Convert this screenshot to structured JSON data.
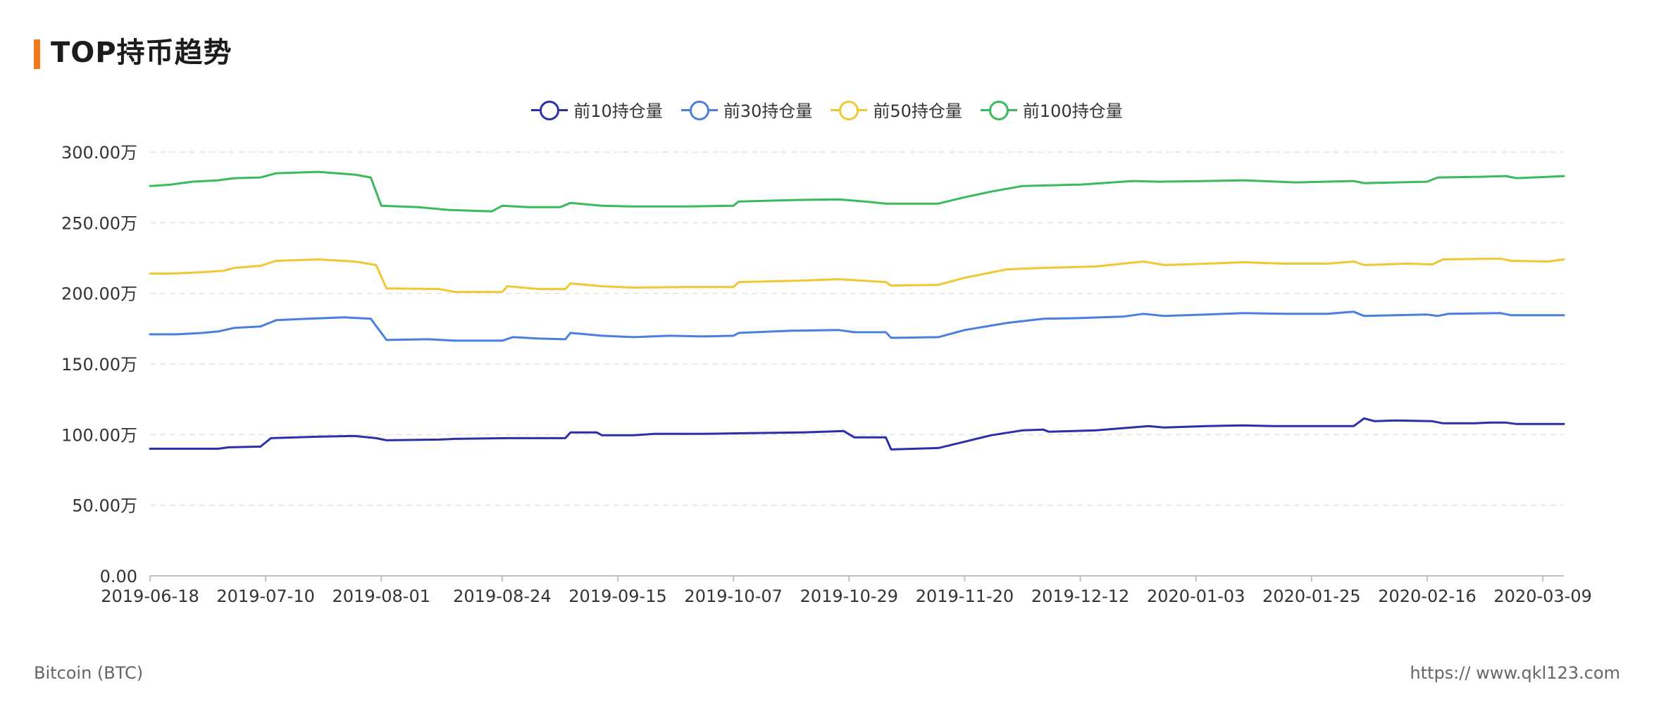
{
  "header": {
    "title": "TOP持币趋势"
  },
  "footer": {
    "left": "Bitcoin (BTC)",
    "right": "https:// www.qkl123.com"
  },
  "chart_data": {
    "type": "line",
    "title": "TOP持币趋势",
    "xlabel": "",
    "ylabel": "",
    "ylim": [
      0,
      3000000
    ],
    "y_ticks": [
      0,
      500000,
      1000000,
      1500000,
      2000000,
      2500000,
      3000000
    ],
    "y_tick_labels": [
      "0.00",
      "50.00万",
      "100.00万",
      "150.00万",
      "200.00万",
      "250.00万",
      "300.00万"
    ],
    "x_tick_labels": [
      "2019-06-18",
      "2019-07-10",
      "2019-08-01",
      "2019-08-24",
      "2019-09-15",
      "2019-10-07",
      "2019-10-29",
      "2019-11-20",
      "2019-12-12",
      "2020-01-03",
      "2020-01-25",
      "2020-02-16",
      "2020-03-09"
    ],
    "x_range": [
      "2019-06-18",
      "2020-03-13"
    ],
    "grid": true,
    "legend_position": "top-center",
    "series": [
      {
        "name": "前10持仓量",
        "color": "#2b2fa8",
        "points": [
          [
            "2019-06-18",
            900000
          ],
          [
            "2019-07-01",
            900000
          ],
          [
            "2019-07-03",
            910000
          ],
          [
            "2019-07-09",
            915000
          ],
          [
            "2019-07-11",
            975000
          ],
          [
            "2019-07-20",
            985000
          ],
          [
            "2019-07-27",
            990000
          ],
          [
            "2019-07-31",
            975000
          ],
          [
            "2019-08-02",
            960000
          ],
          [
            "2019-08-12",
            965000
          ],
          [
            "2019-08-15",
            970000
          ],
          [
            "2019-08-25",
            975000
          ],
          [
            "2019-09-05",
            975000
          ],
          [
            "2019-09-06",
            1015000
          ],
          [
            "2019-09-11",
            1015000
          ],
          [
            "2019-09-12",
            995000
          ],
          [
            "2019-09-18",
            995000
          ],
          [
            "2019-09-22",
            1005000
          ],
          [
            "2019-10-01",
            1005000
          ],
          [
            "2019-10-10",
            1010000
          ],
          [
            "2019-10-20",
            1015000
          ],
          [
            "2019-10-28",
            1025000
          ],
          [
            "2019-10-30",
            980000
          ],
          [
            "2019-11-05",
            980000
          ],
          [
            "2019-11-06",
            895000
          ],
          [
            "2019-11-15",
            905000
          ],
          [
            "2019-11-20",
            950000
          ],
          [
            "2019-11-25",
            995000
          ],
          [
            "2019-12-01",
            1030000
          ],
          [
            "2019-12-05",
            1035000
          ],
          [
            "2019-12-06",
            1020000
          ],
          [
            "2019-12-15",
            1030000
          ],
          [
            "2019-12-20",
            1045000
          ],
          [
            "2019-12-25",
            1060000
          ],
          [
            "2019-12-28",
            1050000
          ],
          [
            "2020-01-05",
            1060000
          ],
          [
            "2020-01-12",
            1065000
          ],
          [
            "2020-01-18",
            1060000
          ],
          [
            "2020-02-02",
            1060000
          ],
          [
            "2020-02-04",
            1115000
          ],
          [
            "2020-02-06",
            1095000
          ],
          [
            "2020-02-10",
            1100000
          ],
          [
            "2020-02-17",
            1095000
          ],
          [
            "2020-02-19",
            1080000
          ],
          [
            "2020-02-25",
            1080000
          ],
          [
            "2020-02-28",
            1085000
          ],
          [
            "2020-03-02",
            1085000
          ],
          [
            "2020-03-04",
            1075000
          ],
          [
            "2020-03-13",
            1075000
          ]
        ]
      },
      {
        "name": "前30持仓量",
        "color": "#4a7fe0",
        "points": [
          [
            "2019-06-18",
            1710000
          ],
          [
            "2019-06-23",
            1710000
          ],
          [
            "2019-06-28",
            1720000
          ],
          [
            "2019-07-01",
            1730000
          ],
          [
            "2019-07-04",
            1755000
          ],
          [
            "2019-07-09",
            1765000
          ],
          [
            "2019-07-12",
            1810000
          ],
          [
            "2019-07-18",
            1820000
          ],
          [
            "2019-07-25",
            1830000
          ],
          [
            "2019-07-30",
            1820000
          ],
          [
            "2019-08-02",
            1670000
          ],
          [
            "2019-08-10",
            1675000
          ],
          [
            "2019-08-15",
            1665000
          ],
          [
            "2019-08-24",
            1665000
          ],
          [
            "2019-08-26",
            1690000
          ],
          [
            "2019-08-31",
            1680000
          ],
          [
            "2019-09-05",
            1675000
          ],
          [
            "2019-09-06",
            1720000
          ],
          [
            "2019-09-12",
            1700000
          ],
          [
            "2019-09-18",
            1690000
          ],
          [
            "2019-09-25",
            1700000
          ],
          [
            "2019-10-01",
            1695000
          ],
          [
            "2019-10-07",
            1700000
          ],
          [
            "2019-10-08",
            1720000
          ],
          [
            "2019-10-18",
            1735000
          ],
          [
            "2019-10-27",
            1740000
          ],
          [
            "2019-10-30",
            1725000
          ],
          [
            "2019-11-05",
            1725000
          ],
          [
            "2019-11-06",
            1685000
          ],
          [
            "2019-11-15",
            1690000
          ],
          [
            "2019-11-20",
            1740000
          ],
          [
            "2019-11-28",
            1790000
          ],
          [
            "2019-12-05",
            1820000
          ],
          [
            "2019-12-12",
            1825000
          ],
          [
            "2019-12-20",
            1835000
          ],
          [
            "2019-12-24",
            1855000
          ],
          [
            "2019-12-28",
            1840000
          ],
          [
            "2020-01-05",
            1850000
          ],
          [
            "2020-01-12",
            1860000
          ],
          [
            "2020-01-20",
            1855000
          ],
          [
            "2020-01-28",
            1855000
          ],
          [
            "2020-02-02",
            1870000
          ],
          [
            "2020-02-04",
            1840000
          ],
          [
            "2020-02-16",
            1850000
          ],
          [
            "2020-02-18",
            1840000
          ],
          [
            "2020-02-20",
            1855000
          ],
          [
            "2020-03-01",
            1860000
          ],
          [
            "2020-03-03",
            1845000
          ],
          [
            "2020-03-13",
            1845000
          ]
        ]
      },
      {
        "name": "前50持仓量",
        "color": "#f1c734",
        "points": [
          [
            "2019-06-18",
            2140000
          ],
          [
            "2019-06-22",
            2140000
          ],
          [
            "2019-06-28",
            2150000
          ],
          [
            "2019-07-02",
            2160000
          ],
          [
            "2019-07-04",
            2180000
          ],
          [
            "2019-07-09",
            2195000
          ],
          [
            "2019-07-12",
            2230000
          ],
          [
            "2019-07-20",
            2240000
          ],
          [
            "2019-07-27",
            2225000
          ],
          [
            "2019-07-31",
            2200000
          ],
          [
            "2019-08-02",
            2035000
          ],
          [
            "2019-08-12",
            2030000
          ],
          [
            "2019-08-15",
            2010000
          ],
          [
            "2019-08-24",
            2010000
          ],
          [
            "2019-08-25",
            2050000
          ],
          [
            "2019-08-31",
            2030000
          ],
          [
            "2019-09-05",
            2030000
          ],
          [
            "2019-09-06",
            2070000
          ],
          [
            "2019-09-12",
            2050000
          ],
          [
            "2019-09-18",
            2040000
          ],
          [
            "2019-09-28",
            2045000
          ],
          [
            "2019-10-07",
            2045000
          ],
          [
            "2019-10-08",
            2080000
          ],
          [
            "2019-10-20",
            2090000
          ],
          [
            "2019-10-27",
            2100000
          ],
          [
            "2019-11-05",
            2080000
          ],
          [
            "2019-11-06",
            2055000
          ],
          [
            "2019-11-15",
            2060000
          ],
          [
            "2019-11-20",
            2110000
          ],
          [
            "2019-11-28",
            2170000
          ],
          [
            "2019-12-05",
            2180000
          ],
          [
            "2019-12-15",
            2190000
          ],
          [
            "2019-12-24",
            2225000
          ],
          [
            "2019-12-28",
            2200000
          ],
          [
            "2020-01-05",
            2210000
          ],
          [
            "2020-01-12",
            2220000
          ],
          [
            "2020-01-20",
            2210000
          ],
          [
            "2020-01-28",
            2210000
          ],
          [
            "2020-02-02",
            2225000
          ],
          [
            "2020-02-04",
            2200000
          ],
          [
            "2020-02-12",
            2210000
          ],
          [
            "2020-02-17",
            2205000
          ],
          [
            "2020-02-19",
            2240000
          ],
          [
            "2020-02-28",
            2245000
          ],
          [
            "2020-03-01",
            2245000
          ],
          [
            "2020-03-03",
            2230000
          ],
          [
            "2020-03-10",
            2225000
          ],
          [
            "2020-03-13",
            2240000
          ]
        ]
      },
      {
        "name": "前100持仓量",
        "color": "#3cba5a",
        "points": [
          [
            "2019-06-18",
            2760000
          ],
          [
            "2019-06-22",
            2770000
          ],
          [
            "2019-06-26",
            2790000
          ],
          [
            "2019-07-01",
            2800000
          ],
          [
            "2019-07-04",
            2815000
          ],
          [
            "2019-07-09",
            2820000
          ],
          [
            "2019-07-12",
            2850000
          ],
          [
            "2019-07-20",
            2860000
          ],
          [
            "2019-07-27",
            2840000
          ],
          [
            "2019-07-30",
            2820000
          ],
          [
            "2019-08-01",
            2620000
          ],
          [
            "2019-08-08",
            2610000
          ],
          [
            "2019-08-14",
            2590000
          ],
          [
            "2019-08-22",
            2580000
          ],
          [
            "2019-08-24",
            2620000
          ],
          [
            "2019-08-29",
            2610000
          ],
          [
            "2019-09-04",
            2610000
          ],
          [
            "2019-09-06",
            2640000
          ],
          [
            "2019-09-12",
            2620000
          ],
          [
            "2019-09-18",
            2615000
          ],
          [
            "2019-09-28",
            2615000
          ],
          [
            "2019-10-07",
            2620000
          ],
          [
            "2019-10-08",
            2650000
          ],
          [
            "2019-10-18",
            2660000
          ],
          [
            "2019-10-27",
            2665000
          ],
          [
            "2019-11-01",
            2650000
          ],
          [
            "2019-11-05",
            2635000
          ],
          [
            "2019-11-15",
            2635000
          ],
          [
            "2019-11-20",
            2680000
          ],
          [
            "2019-11-25",
            2720000
          ],
          [
            "2019-12-01",
            2760000
          ],
          [
            "2019-12-12",
            2770000
          ],
          [
            "2019-12-22",
            2795000
          ],
          [
            "2019-12-27",
            2790000
          ],
          [
            "2020-01-05",
            2795000
          ],
          [
            "2020-01-12",
            2800000
          ],
          [
            "2020-01-22",
            2785000
          ],
          [
            "2020-02-02",
            2795000
          ],
          [
            "2020-02-04",
            2780000
          ],
          [
            "2020-02-16",
            2790000
          ],
          [
            "2020-02-18",
            2820000
          ],
          [
            "2020-02-26",
            2825000
          ],
          [
            "2020-03-02",
            2830000
          ],
          [
            "2020-03-04",
            2815000
          ],
          [
            "2020-03-13",
            2830000
          ]
        ]
      }
    ]
  }
}
